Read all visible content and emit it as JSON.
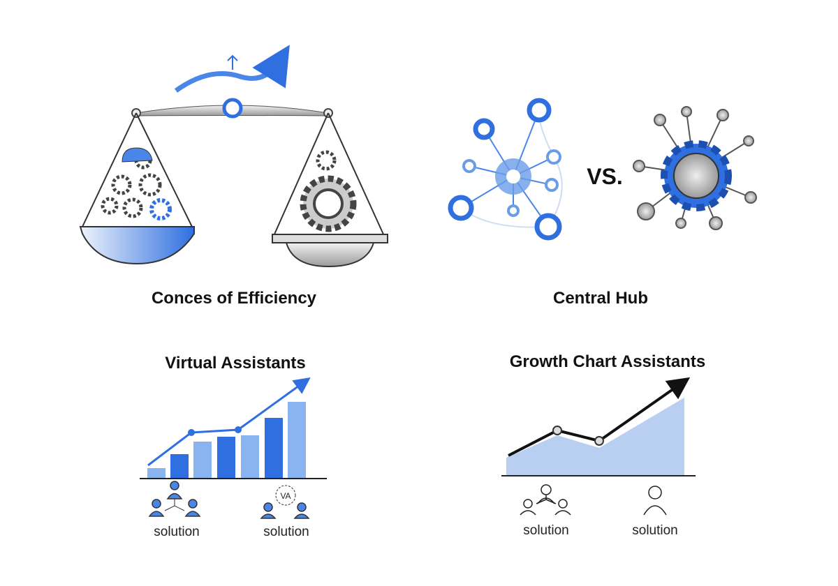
{
  "panels": [
    {
      "title": "Conces of Efficiency"
    },
    {
      "title": "Central Hub",
      "separator": "VS."
    },
    {
      "title": "Virtual Assistants",
      "icon_label": "VA",
      "captions": [
        "solution",
        "solution"
      ]
    },
    {
      "title": "Growth Chart Assistants",
      "captions": [
        "solution",
        "solution"
      ]
    }
  ]
}
